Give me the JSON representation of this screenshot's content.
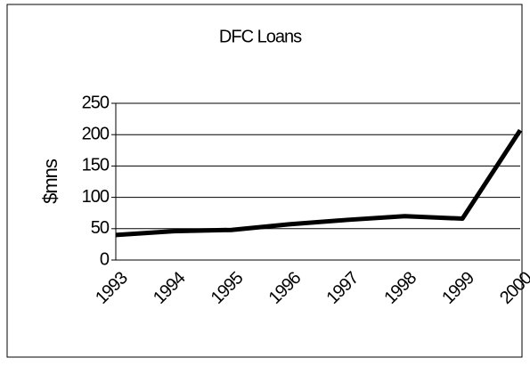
{
  "chart_data": {
    "type": "line",
    "title": "DFC Loans",
    "y_label": "$mns",
    "categories": [
      "1993",
      "1994",
      "1995",
      "1996",
      "1997",
      "1998",
      "1999",
      "2000"
    ],
    "series": [
      {
        "name": "DFC Loans",
        "color": "#000000",
        "values": [
          40,
          46,
          48,
          57,
          64,
          70,
          66,
          207
        ]
      }
    ],
    "ylim": [
      0,
      250
    ],
    "yticks": [
      0,
      50,
      100,
      150,
      200,
      250
    ],
    "grid": true
  }
}
